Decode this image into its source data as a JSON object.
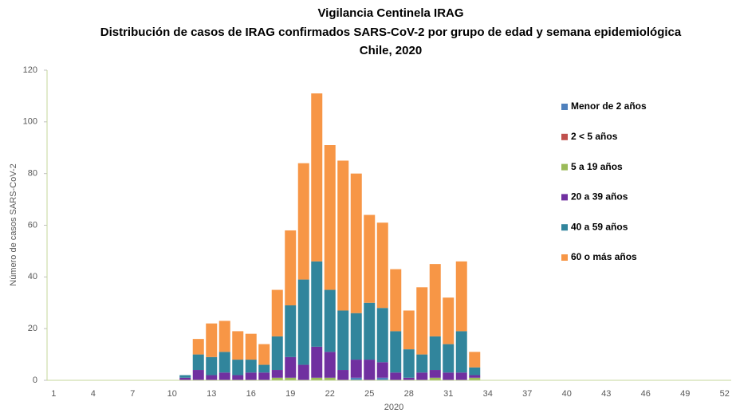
{
  "chart_data": {
    "type": "stacked-bar",
    "title": [
      "Vigilancia Centinela IRAG",
      "Distribución de casos de IRAG confirmados SARS-CoV-2 por grupo de edad y semana epidemiológica",
      "Chile, 2020"
    ],
    "x_label": "2020",
    "y_label": "Número de casos SARS-CoV-2",
    "categories": [
      "1",
      null,
      null,
      "4",
      null,
      null,
      "7",
      null,
      null,
      "10",
      null,
      null,
      "13",
      null,
      null,
      "16",
      null,
      null,
      "19",
      null,
      null,
      "22",
      null,
      null,
      "25",
      null,
      null,
      "28",
      null,
      null,
      "31",
      null,
      null,
      "34",
      null,
      null,
      "37",
      null,
      null,
      "40",
      null,
      null,
      "43",
      null,
      null,
      "46",
      null,
      null,
      "49",
      null,
      null,
      "52"
    ],
    "series": [
      {
        "name": "Menor de 2 años",
        "color": "#4f81bd",
        "values": [
          0,
          0,
          0,
          0,
          0,
          0,
          0,
          0,
          0,
          0,
          0,
          0,
          0,
          0,
          0,
          0,
          0,
          0,
          0,
          0,
          0,
          0,
          0,
          1,
          0,
          1,
          0,
          0,
          0,
          0,
          0,
          0,
          0,
          0,
          0,
          0,
          0,
          0,
          0,
          0,
          0,
          0,
          0,
          0,
          0,
          0,
          0,
          0,
          0,
          0,
          0,
          0
        ]
      },
      {
        "name": "2 < 5 años",
        "color": "#c0504d",
        "values": [
          0,
          0,
          0,
          0,
          0,
          0,
          0,
          0,
          0,
          0,
          0,
          0,
          0,
          0,
          0,
          0,
          0,
          0,
          0,
          0,
          0,
          0,
          0,
          0,
          0,
          0,
          0,
          0,
          0,
          0,
          0,
          0,
          0,
          0,
          0,
          0,
          0,
          0,
          0,
          0,
          0,
          0,
          0,
          0,
          0,
          0,
          0,
          0,
          0,
          0,
          0,
          0
        ]
      },
      {
        "name": "5 a 19 años",
        "color": "#9bbb59",
        "values": [
          0,
          0,
          0,
          0,
          0,
          0,
          0,
          0,
          0,
          0,
          0,
          0,
          0,
          0,
          0,
          0,
          0,
          1,
          1,
          0,
          1,
          1,
          0,
          0,
          0,
          0,
          0,
          0,
          0,
          1,
          0,
          0,
          1,
          0,
          0,
          0,
          0,
          0,
          0,
          0,
          0,
          0,
          0,
          0,
          0,
          0,
          0,
          0,
          0,
          0,
          0,
          0
        ]
      },
      {
        "name": "20 a 39 años",
        "color": "#7030a0",
        "values": [
          0,
          0,
          0,
          0,
          0,
          0,
          0,
          0,
          0,
          0,
          1,
          4,
          2,
          3,
          2,
          3,
          3,
          3,
          8,
          6,
          12,
          10,
          4,
          7,
          8,
          6,
          3,
          1,
          3,
          3,
          3,
          3,
          1,
          0,
          0,
          0,
          0,
          0,
          0,
          0,
          0,
          0,
          0,
          0,
          0,
          0,
          0,
          0,
          0,
          0,
          0,
          0
        ]
      },
      {
        "name": "40 a 59 años",
        "color": "#31859c",
        "values": [
          0,
          0,
          0,
          0,
          0,
          0,
          0,
          0,
          0,
          0,
          1,
          6,
          7,
          8,
          6,
          5,
          3,
          13,
          20,
          33,
          33,
          24,
          23,
          18,
          22,
          21,
          16,
          11,
          7,
          13,
          11,
          16,
          3,
          0,
          0,
          0,
          0,
          0,
          0,
          0,
          0,
          0,
          0,
          0,
          0,
          0,
          0,
          0,
          0,
          0,
          0,
          0
        ]
      },
      {
        "name": "60 o más años",
        "color": "#f79646",
        "values": [
          0,
          0,
          0,
          0,
          0,
          0,
          0,
          0,
          0,
          0,
          0,
          6,
          13,
          12,
          11,
          10,
          8,
          18,
          29,
          45,
          65,
          56,
          58,
          54,
          34,
          33,
          24,
          15,
          26,
          28,
          18,
          27,
          6,
          0,
          0,
          0,
          0,
          0,
          0,
          0,
          0,
          0,
          0,
          0,
          0,
          0,
          0,
          0,
          0,
          0,
          0,
          0
        ]
      }
    ],
    "ylim": [
      0,
      120
    ],
    "yticks": [
      0,
      20,
      40,
      60,
      80,
      100,
      120
    ],
    "grid": false,
    "legend": "right"
  }
}
